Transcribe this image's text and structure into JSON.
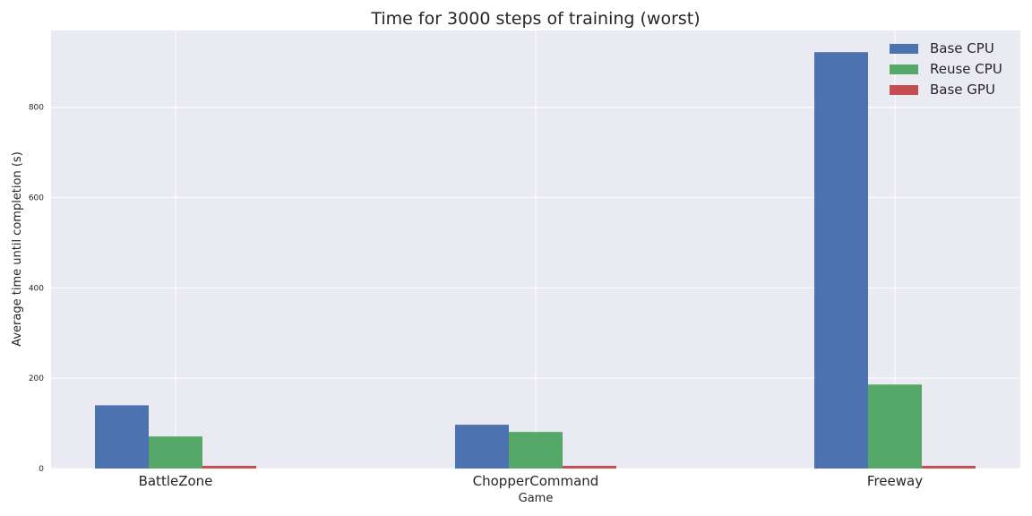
{
  "chart_data": {
    "type": "bar",
    "title": "Time for 3000 steps of training (worst)",
    "xlabel": "Game",
    "ylabel": "Average time until completion (s)",
    "categories": [
      "BattleZone",
      "ChopperCommand",
      "Freeway"
    ],
    "series": [
      {
        "name": "Base CPU",
        "values": [
          140,
          97,
          922
        ],
        "color": "#4C72B0"
      },
      {
        "name": "Reuse CPU",
        "values": [
          71,
          81,
          186
        ],
        "color": "#55A868"
      },
      {
        "name": "Base GPU",
        "values": [
          6,
          6,
          6
        ],
        "color": "#C44E52"
      }
    ],
    "ylim": [
      0,
      970
    ],
    "yticks": [
      0,
      200,
      400,
      600,
      800
    ],
    "grid": true,
    "legend_position": "top-right"
  }
}
